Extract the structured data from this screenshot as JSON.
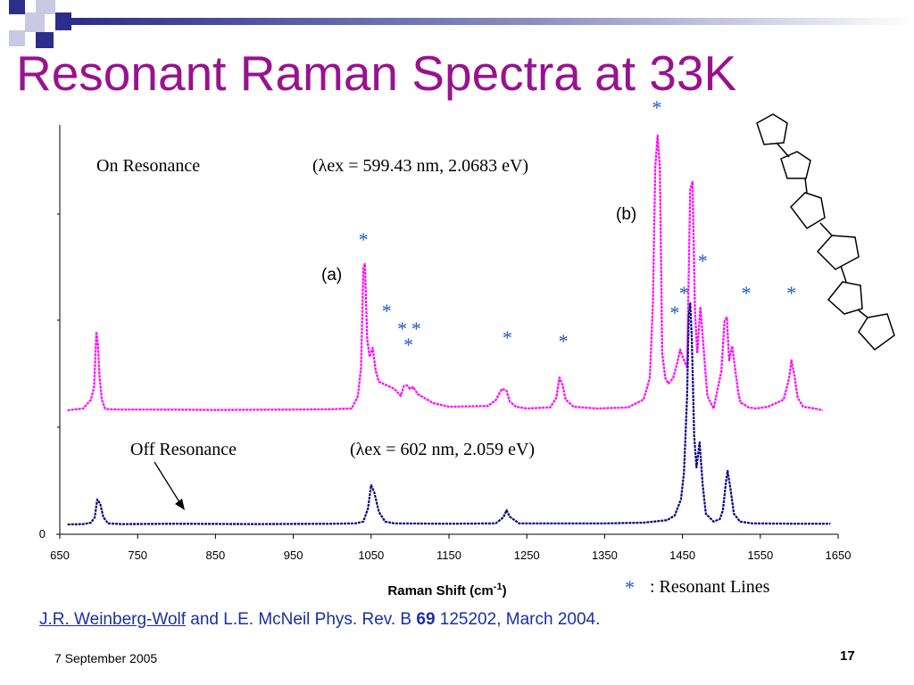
{
  "slide": {
    "title": "Resonant Raman Spectra at 33K",
    "date": "7 September 2005",
    "page_number": "17",
    "reference": {
      "authors_link": "J.R. Weinberg-Wolf",
      "text_before_vol": " and L.E. McNeil Phys. Rev. B ",
      "volume": "69",
      "text_after_vol": " 125202, March 2004."
    },
    "colors": {
      "title": "#99128f",
      "on_resonance": "#ff00ff",
      "off_resonance": "#000080",
      "resonant_marker": "#1f57c7",
      "reference_text": "#1c2ea4"
    },
    "icons": [
      "corner-squares-icon",
      "terthiophene-molecule-icon"
    ]
  },
  "chart_data": {
    "type": "line",
    "xlabel": "Raman Shift (cm-1)",
    "xlabel_main": "Raman Shift (cm",
    "xlabel_sup": "-1",
    "xlabel_close": ")",
    "xlim": [
      650,
      1650
    ],
    "xticks": [
      "650",
      "750",
      "850",
      "950",
      "1050",
      "1150",
      "1250",
      "1350",
      "1450",
      "1550",
      "1650"
    ],
    "y_tick_label": "0",
    "grid": false,
    "series": [
      {
        "name": "On Resonance",
        "condition": "(λex = 599.43 nm, 2.0683 eV)",
        "x": [
          660,
          680,
          690,
          694,
          697,
          699,
          701,
          704,
          708,
          712,
          730,
          780,
          850,
          950,
          1000,
          1025,
          1033,
          1037,
          1040,
          1042,
          1045,
          1048,
          1052,
          1056,
          1060,
          1070,
          1080,
          1088,
          1092,
          1096,
          1100,
          1104,
          1110,
          1130,
          1150,
          1200,
          1210,
          1218,
          1224,
          1228,
          1236,
          1250,
          1280,
          1288,
          1292,
          1296,
          1300,
          1310,
          1340,
          1380,
          1400,
          1408,
          1412,
          1415,
          1418,
          1421,
          1424,
          1428,
          1432,
          1438,
          1443,
          1447,
          1452,
          1456,
          1460,
          1463,
          1466,
          1469,
          1473,
          1477,
          1482,
          1490,
          1500,
          1504,
          1507,
          1510,
          1514,
          1518,
          1522,
          1525,
          1528,
          1535,
          1545,
          1560,
          1580,
          1587,
          1590,
          1594,
          1598,
          1605,
          1620,
          1630
        ],
        "y": [
          0,
          5,
          30,
          65,
          220,
          185,
          95,
          30,
          5,
          3,
          2,
          2,
          1,
          2,
          3,
          5,
          40,
          120,
          400,
          410,
          200,
          150,
          175,
          110,
          80,
          70,
          60,
          40,
          68,
          70,
          60,
          65,
          45,
          20,
          10,
          12,
          28,
          60,
          55,
          25,
          10,
          5,
          8,
          35,
          92,
          70,
          30,
          10,
          5,
          8,
          30,
          90,
          300,
          680,
          770,
          680,
          160,
          90,
          75,
          90,
          130,
          170,
          140,
          120,
          620,
          640,
          280,
          160,
          290,
          180,
          40,
          5,
          110,
          250,
          260,
          140,
          180,
          110,
          45,
          20,
          18,
          8,
          5,
          10,
          30,
          90,
          140,
          95,
          35,
          10,
          5,
          0
        ]
      },
      {
        "name": "Off Resonance",
        "condition": "(λex = 602 nm, 2.059 eV)",
        "x": [
          660,
          680,
          690,
          695,
          698,
          702,
          706,
          712,
          730,
          800,
          900,
          1000,
          1030,
          1040,
          1046,
          1050,
          1054,
          1060,
          1068,
          1080,
          1150,
          1210,
          1220,
          1224,
          1228,
          1240,
          1350,
          1400,
          1430,
          1440,
          1448,
          1452,
          1456,
          1458,
          1460,
          1462,
          1465,
          1468,
          1472,
          1476,
          1480,
          1490,
          1498,
          1502,
          1506,
          1508,
          1512,
          1516,
          1524,
          1540,
          1600,
          1640
        ],
        "y": [
          0,
          1,
          5,
          20,
          70,
          58,
          20,
          3,
          1,
          2,
          1,
          2,
          3,
          8,
          45,
          110,
          90,
          35,
          8,
          3,
          2,
          3,
          20,
          40,
          22,
          3,
          3,
          5,
          12,
          25,
          70,
          145,
          360,
          580,
          620,
          520,
          250,
          160,
          230,
          110,
          30,
          8,
          15,
          40,
          120,
          150,
          95,
          30,
          8,
          3,
          2,
          2
        ]
      }
    ],
    "annotations": [
      {
        "text": "On Resonance"
      },
      {
        "text": "Off Resonance"
      },
      {
        "text": "(a)"
      },
      {
        "text": "(b)"
      }
    ],
    "resonant_markers": [
      {
        "x": 1040,
        "y": 460
      },
      {
        "x": 1070,
        "y": 260
      },
      {
        "x": 1090,
        "y": 210
      },
      {
        "x": 1098,
        "y": 165
      },
      {
        "x": 1108,
        "y": 210
      },
      {
        "x": 1225,
        "y": 185
      },
      {
        "x": 1297,
        "y": 175
      },
      {
        "x": 1417,
        "y": 830
      },
      {
        "x": 1440,
        "y": 255
      },
      {
        "x": 1452,
        "y": 310
      },
      {
        "x": 1476,
        "y": 400
      },
      {
        "x": 1532,
        "y": 310
      },
      {
        "x": 1590,
        "y": 310
      }
    ],
    "legend": {
      "marker": "*",
      "text": ": Resonant Lines",
      "position": "bottom-right"
    }
  }
}
